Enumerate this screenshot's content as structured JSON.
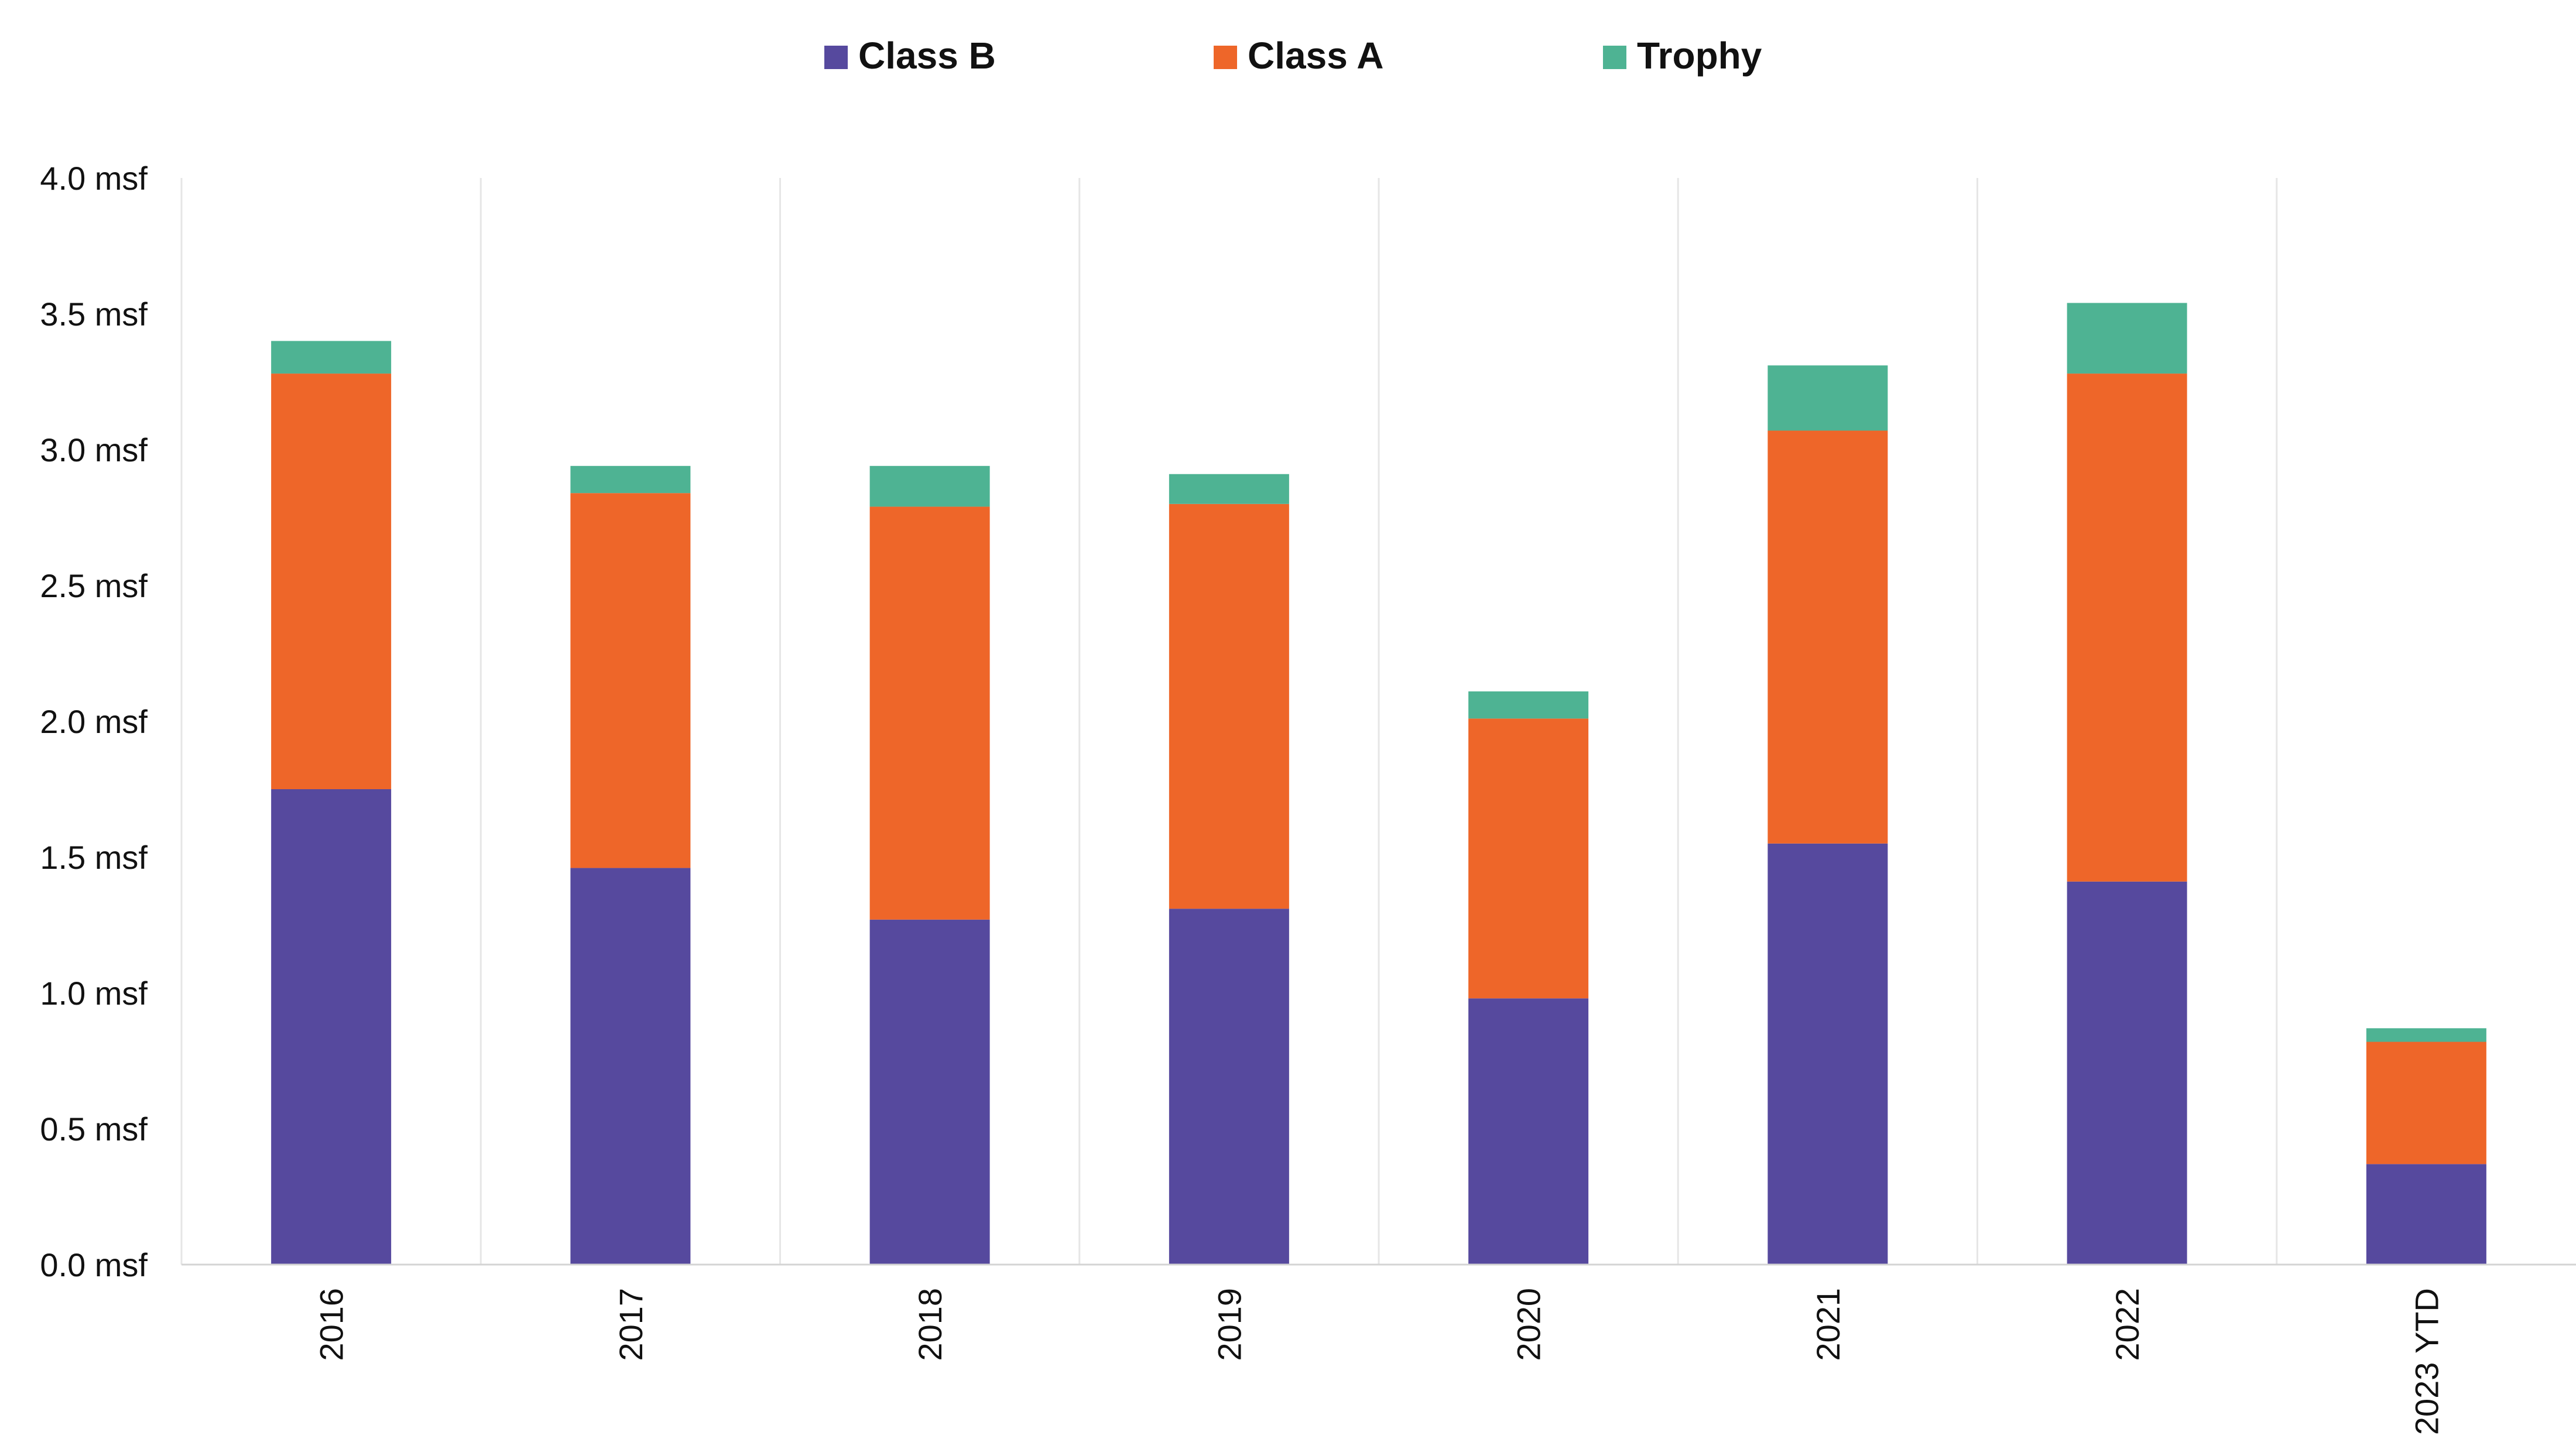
{
  "chart_data": {
    "type": "bar",
    "stacked": true,
    "title": "",
    "xlabel": "",
    "ylabel": "",
    "ylim": [
      0,
      4.0
    ],
    "y_unit_suffix": " msf",
    "y_ticks": [
      "0.0 msf",
      "0.5 msf",
      "1.0 msf",
      "1.5 msf",
      "2.0 msf",
      "2.5 msf",
      "3.0 msf",
      "3.5 msf",
      "4.0 msf"
    ],
    "grid": "vertical",
    "legend_position": "top-center",
    "categories": [
      "2016",
      "2017",
      "2018",
      "2019",
      "2020",
      "2021",
      "2022",
      "2023 YTD"
    ],
    "series": [
      {
        "name": "Class B",
        "color": "#56499E",
        "values": [
          1.75,
          1.46,
          1.27,
          1.31,
          0.98,
          1.55,
          1.41,
          0.37
        ]
      },
      {
        "name": "Class A",
        "color": "#EE6629",
        "values": [
          1.53,
          1.38,
          1.52,
          1.49,
          1.03,
          1.52,
          1.87,
          0.45
        ]
      },
      {
        "name": "Trophy",
        "color": "#4EB393",
        "values": [
          0.12,
          0.1,
          0.15,
          0.11,
          0.1,
          0.24,
          0.26,
          0.05
        ]
      }
    ]
  }
}
